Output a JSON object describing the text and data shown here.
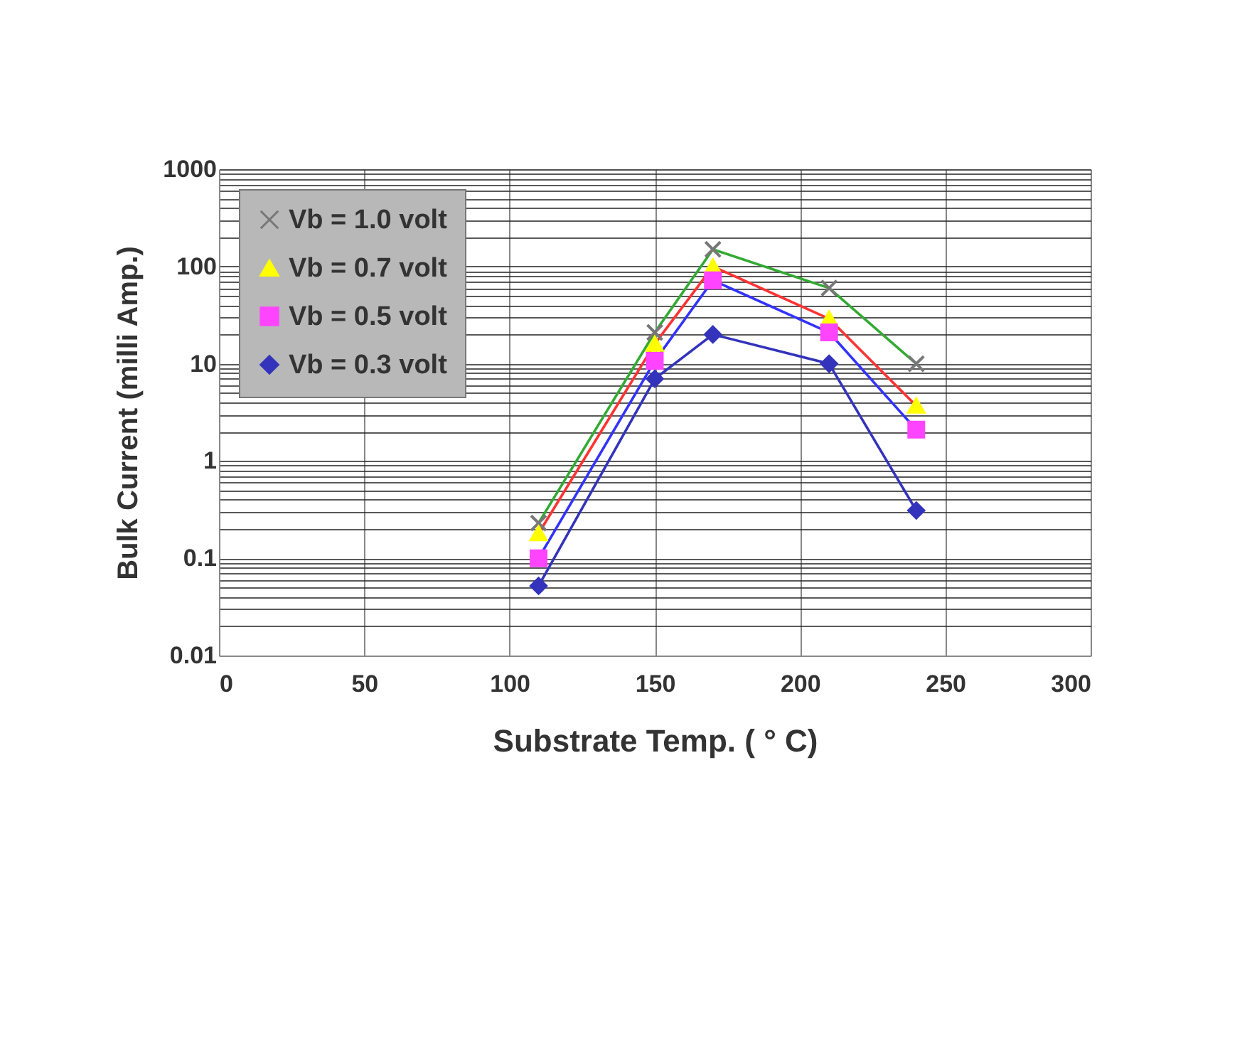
{
  "chart_data": {
    "type": "line",
    "xlabel": "Substrate Temp. ( ° C)",
    "ylabel": "Bulk Current (milli Amp.)",
    "x": [
      110,
      150,
      170,
      210,
      240
    ],
    "series": [
      {
        "name": "Vb = 1.0 volt",
        "color": "#33aa33",
        "marker": "cross",
        "colors": [
          "#777777",
          "#777777",
          "#777777",
          "#777777",
          "#777777"
        ],
        "values": [
          0.23,
          21,
          150,
          60,
          10
        ]
      },
      {
        "name": "Vb = 0.7 volt",
        "color": "#ff3333",
        "marker": "triangle",
        "colors": [
          "#ffff00",
          "#ffff00",
          "#ffff00",
          "#ffff00",
          "#ffff00"
        ],
        "values": [
          0.18,
          16,
          100,
          29,
          3.7
        ]
      },
      {
        "name": "Vb = 0.5 volt",
        "color": "#3333ff",
        "marker": "square",
        "colors": [
          "#ff44ff",
          "#ff44ff",
          "#ff44ff",
          "#ff44ff",
          "#ff44ff"
        ],
        "values": [
          0.1,
          10.7,
          72,
          21,
          2.1
        ]
      },
      {
        "name": "Vb = 0.3 volt",
        "color": "#3333bb",
        "marker": "diamond",
        "colors": [
          "#3333bb",
          "#3333bb",
          "#3333bb",
          "#3333bb",
          "#3333bb"
        ],
        "values": [
          0.052,
          7,
          20,
          10,
          0.31
        ]
      }
    ],
    "xlim": [
      0,
      300
    ],
    "xticks": [
      0,
      50,
      100,
      150,
      200,
      250,
      300
    ],
    "ylim": [
      0.01,
      1000
    ],
    "yticks": [
      0.01,
      0.1,
      1,
      10,
      100,
      1000
    ],
    "log": "y",
    "grid": true,
    "legend": "top left"
  }
}
